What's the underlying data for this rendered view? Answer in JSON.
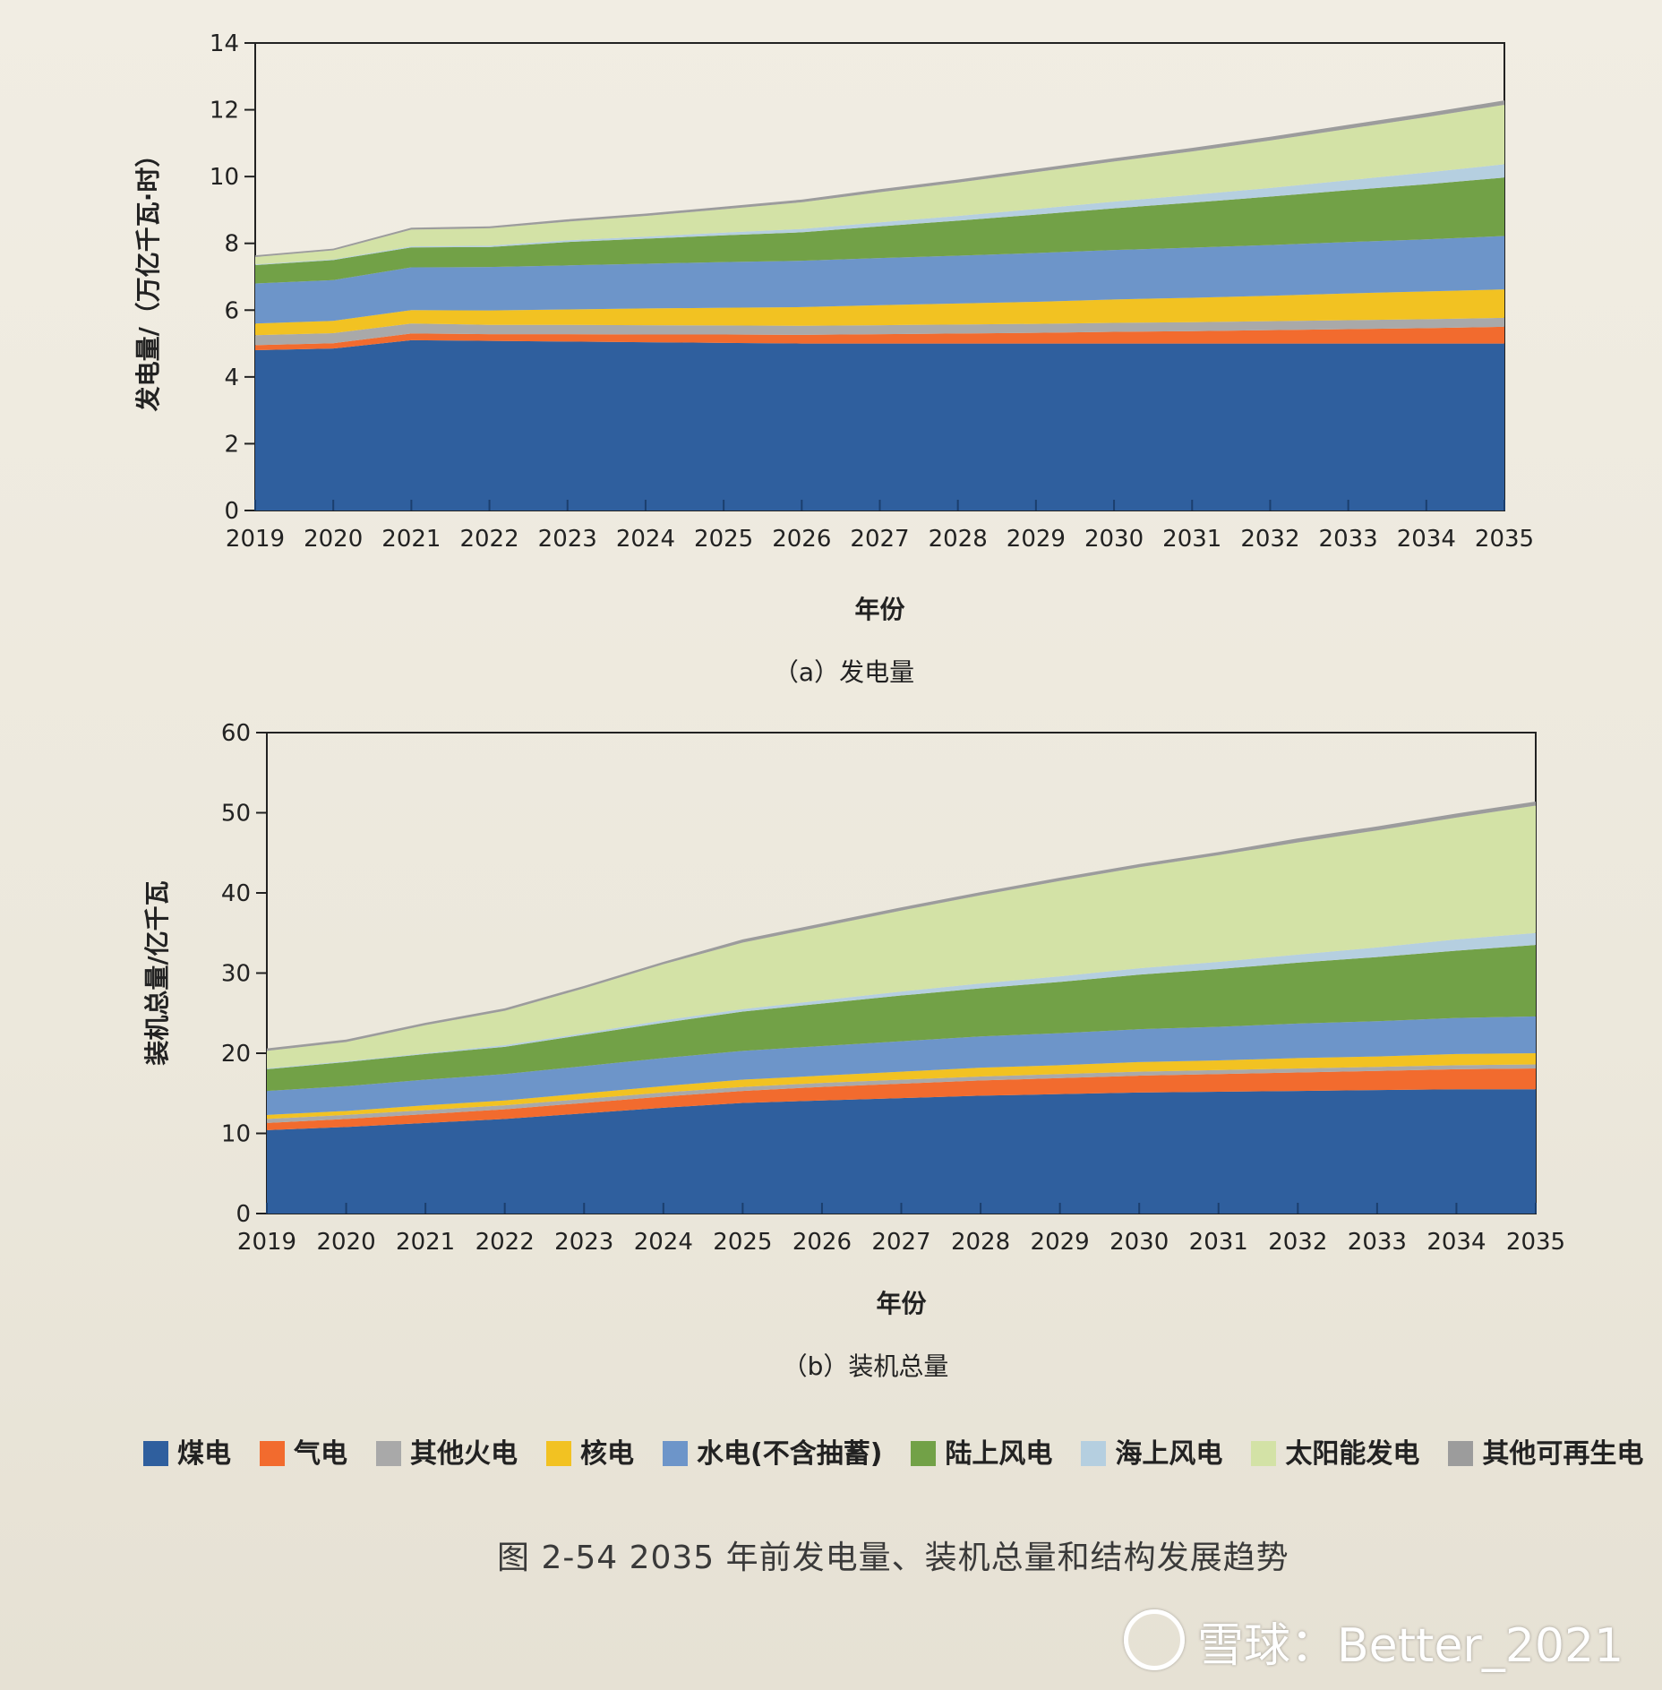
{
  "legend": {
    "items": [
      {
        "label": "煤电",
        "color": "#2f5f9e"
      },
      {
        "label": "气电",
        "color": "#f26b2e"
      },
      {
        "label": "其他火电",
        "color": "#a9a9a9"
      },
      {
        "label": "核电",
        "color": "#f2c222"
      },
      {
        "label": "水电(不含抽蓄)",
        "color": "#6d95c9"
      },
      {
        "label": "陆上风电",
        "color": "#72a147"
      },
      {
        "label": "海上风电",
        "color": "#b5cfe0"
      },
      {
        "label": "太阳能发电",
        "color": "#d3e2a6"
      },
      {
        "label": "其他可再生电",
        "color": "#9c9c9c"
      }
    ]
  },
  "figure_title": "图 2-54    2035 年前发电量、装机总量和结构发展趋势",
  "watermark": "雪球：Better_2021",
  "chart_data": [
    {
      "type": "area",
      "stacked": true,
      "caption": "（a）发电量",
      "xlabel": "年份",
      "ylabel": "发电量/（万亿千瓦·时）",
      "ylim": [
        0,
        14
      ],
      "yticks": [
        0,
        2,
        4,
        6,
        8,
        10,
        12,
        14
      ],
      "x": [
        "2019",
        "2020",
        "2021",
        "2022",
        "2023",
        "2024",
        "2025",
        "2026",
        "2027",
        "2028",
        "2029",
        "2030",
        "2031",
        "2032",
        "2033",
        "2034",
        "2035"
      ],
      "series": [
        {
          "name": "煤电",
          "values": [
            4.8,
            4.85,
            5.1,
            5.08,
            5.06,
            5.04,
            5.02,
            5.0,
            5.0,
            5.0,
            5.0,
            5.0,
            5.0,
            5.0,
            5.0,
            5.0,
            5.0
          ]
        },
        {
          "name": "气电",
          "values": [
            0.15,
            0.16,
            0.2,
            0.2,
            0.22,
            0.23,
            0.25,
            0.26,
            0.28,
            0.3,
            0.32,
            0.35,
            0.37,
            0.4,
            0.43,
            0.46,
            0.5
          ]
        },
        {
          "name": "其他火电",
          "values": [
            0.3,
            0.3,
            0.3,
            0.28,
            0.28,
            0.28,
            0.27,
            0.27,
            0.27,
            0.27,
            0.27,
            0.27,
            0.27,
            0.27,
            0.27,
            0.27,
            0.27
          ]
        },
        {
          "name": "核电",
          "values": [
            0.35,
            0.37,
            0.4,
            0.43,
            0.46,
            0.5,
            0.53,
            0.56,
            0.6,
            0.63,
            0.66,
            0.7,
            0.73,
            0.76,
            0.8,
            0.83,
            0.85
          ]
        },
        {
          "name": "水电(不含抽蓄)",
          "values": [
            1.2,
            1.22,
            1.28,
            1.3,
            1.32,
            1.34,
            1.37,
            1.39,
            1.41,
            1.43,
            1.46,
            1.48,
            1.5,
            1.52,
            1.54,
            1.56,
            1.6
          ]
        },
        {
          "name": "陆上风电",
          "values": [
            0.55,
            0.6,
            0.6,
            0.6,
            0.7,
            0.75,
            0.8,
            0.85,
            0.95,
            1.05,
            1.15,
            1.25,
            1.35,
            1.45,
            1.55,
            1.65,
            1.75
          ]
        },
        {
          "name": "海上风电",
          "values": [
            0.02,
            0.02,
            0.03,
            0.04,
            0.05,
            0.06,
            0.08,
            0.1,
            0.12,
            0.14,
            0.17,
            0.2,
            0.23,
            0.26,
            0.3,
            0.35,
            0.4
          ]
        },
        {
          "name": "太阳能发电",
          "values": [
            0.22,
            0.27,
            0.5,
            0.52,
            0.56,
            0.62,
            0.7,
            0.8,
            0.9,
            1.0,
            1.1,
            1.2,
            1.3,
            1.42,
            1.54,
            1.66,
            1.78
          ]
        },
        {
          "name": "其他可再生电",
          "values": [
            0.05,
            0.05,
            0.06,
            0.06,
            0.07,
            0.07,
            0.08,
            0.08,
            0.09,
            0.09,
            0.1,
            0.1,
            0.11,
            0.11,
            0.12,
            0.12,
            0.13
          ]
        }
      ]
    },
    {
      "type": "area",
      "stacked": true,
      "caption": "（b）装机总量",
      "xlabel": "年份",
      "ylabel": "装机总量/亿千瓦",
      "ylim": [
        0,
        60
      ],
      "yticks": [
        0,
        10,
        20,
        30,
        40,
        50,
        60
      ],
      "x": [
        "2019",
        "2020",
        "2021",
        "2022",
        "2023",
        "2024",
        "2025",
        "2026",
        "2027",
        "2028",
        "2029",
        "2030",
        "2031",
        "2032",
        "2033",
        "2034",
        "2035"
      ],
      "series": [
        {
          "name": "煤电",
          "values": [
            10.4,
            10.8,
            11.3,
            11.8,
            12.5,
            13.2,
            13.8,
            14.1,
            14.4,
            14.7,
            14.9,
            15.1,
            15.2,
            15.3,
            15.4,
            15.5,
            15.5
          ]
        },
        {
          "name": "气电",
          "values": [
            0.9,
            1.0,
            1.1,
            1.2,
            1.3,
            1.4,
            1.5,
            1.7,
            1.8,
            1.9,
            2.0,
            2.1,
            2.2,
            2.3,
            2.4,
            2.5,
            2.6
          ]
        },
        {
          "name": "其他火电",
          "values": [
            0.5,
            0.5,
            0.5,
            0.5,
            0.5,
            0.5,
            0.5,
            0.5,
            0.5,
            0.5,
            0.5,
            0.5,
            0.5,
            0.5,
            0.5,
            0.5,
            0.5
          ]
        },
        {
          "name": "核电",
          "values": [
            0.5,
            0.5,
            0.6,
            0.6,
            0.7,
            0.8,
            0.9,
            0.9,
            1.0,
            1.1,
            1.1,
            1.2,
            1.2,
            1.3,
            1.3,
            1.4,
            1.4
          ]
        },
        {
          "name": "水电(不含抽蓄)",
          "values": [
            3.0,
            3.1,
            3.2,
            3.3,
            3.4,
            3.5,
            3.6,
            3.7,
            3.8,
            3.9,
            4.0,
            4.1,
            4.2,
            4.3,
            4.4,
            4.5,
            4.6
          ]
        },
        {
          "name": "陆上风电",
          "values": [
            2.7,
            3.0,
            3.2,
            3.4,
            3.9,
            4.4,
            4.9,
            5.3,
            5.7,
            6.0,
            6.4,
            6.8,
            7.2,
            7.6,
            8.0,
            8.4,
            8.9
          ]
        },
        {
          "name": "海上风电",
          "values": [
            0.1,
            0.1,
            0.1,
            0.2,
            0.2,
            0.3,
            0.3,
            0.4,
            0.5,
            0.6,
            0.7,
            0.8,
            0.9,
            1.0,
            1.2,
            1.4,
            1.5
          ]
        },
        {
          "name": "太阳能发电",
          "values": [
            2.2,
            2.4,
            3.5,
            4.3,
            5.6,
            7.0,
            8.3,
            9.2,
            10.1,
            11.0,
            11.9,
            12.6,
            13.3,
            14.0,
            14.6,
            15.2,
            15.9
          ]
        },
        {
          "name": "其他可再生电",
          "values": [
            0.3,
            0.3,
            0.3,
            0.3,
            0.3,
            0.3,
            0.4,
            0.4,
            0.4,
            0.4,
            0.4,
            0.4,
            0.4,
            0.5,
            0.5,
            0.5,
            0.5
          ]
        }
      ]
    }
  ]
}
